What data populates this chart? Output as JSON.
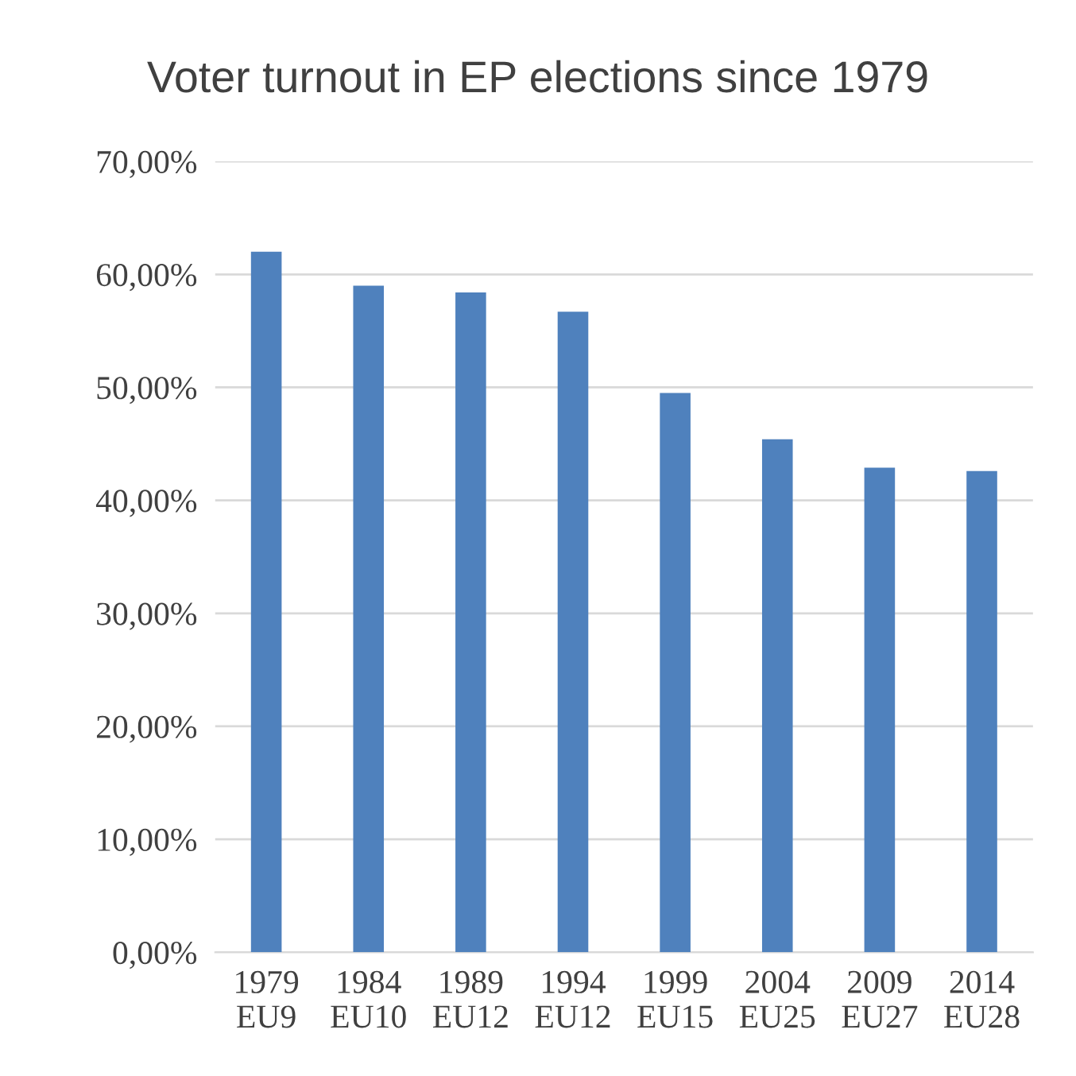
{
  "chart_data": {
    "type": "bar",
    "title": "Voter turnout in EP elections since 1979",
    "categories": [
      "1979\nEU9",
      "1984\nEU10",
      "1989\nEU12",
      "1994\nEU12",
      "1999\nEU15",
      "2004\nEU25",
      "2009\nEU27",
      "2014\nEU28"
    ],
    "values": [
      62.0,
      59.0,
      58.4,
      56.7,
      49.5,
      45.4,
      42.9,
      42.6
    ],
    "color": "#4f81bd",
    "ylim": [
      0,
      70
    ],
    "yticks": [
      {
        "value": 0,
        "label": "0,00%"
      },
      {
        "value": 10,
        "label": "10,00%"
      },
      {
        "value": 20,
        "label": "20,00%"
      },
      {
        "value": 30,
        "label": "30,00%"
      },
      {
        "value": 40,
        "label": "40,00%"
      },
      {
        "value": 50,
        "label": "50,00%"
      },
      {
        "value": 60,
        "label": "60,00%"
      },
      {
        "value": 70,
        "label": "70,00%"
      }
    ],
    "grid": "y"
  }
}
